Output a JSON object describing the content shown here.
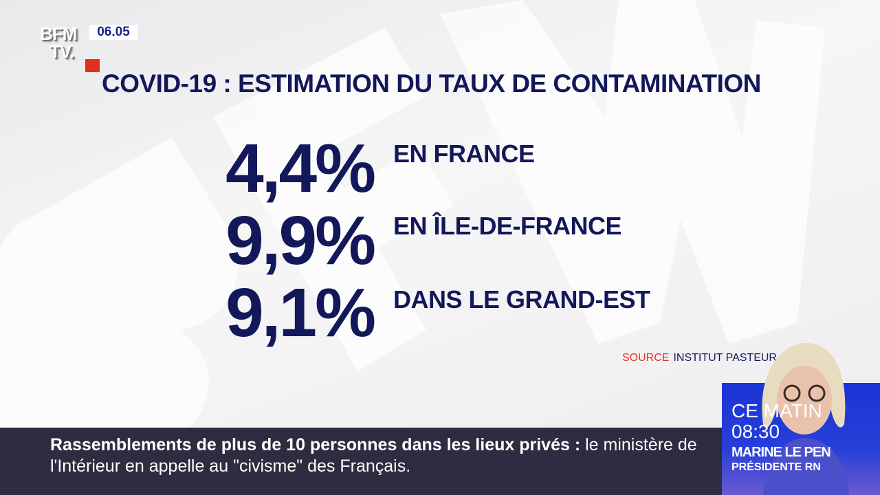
{
  "channel": {
    "logo_line1": "BFM",
    "logo_line2": "TV.",
    "clock": "06.05"
  },
  "title": "COVID-19 : ESTIMATION DU TAUX DE CONTAMINATION",
  "rows": [
    {
      "value": "4,4%",
      "label": "EN FRANCE"
    },
    {
      "value": "9,9%",
      "label": "EN ÎLE-DE-FRANCE"
    },
    {
      "value": "9,1%",
      "label": "DANS LE GRAND-EST"
    }
  ],
  "source": {
    "label": "SOURCE",
    "value": "INSTITUT PASTEUR"
  },
  "ticker": {
    "headline": "Rassemblements de plus de 10 personnes dans les lieux privés  :",
    "text": " le ministère de l'Intérieur en appelle au \"civisme\" des Français."
  },
  "promo": {
    "when": "CE MATIN",
    "time": "08:30",
    "guest": "MARINE LE PEN",
    "role": "PRÉSIDENTE RN"
  },
  "colors": {
    "navy": "#13185a",
    "red": "#e0301e",
    "ticker_bg": "#2d2c40",
    "promo_blue": "#1a34d6"
  }
}
